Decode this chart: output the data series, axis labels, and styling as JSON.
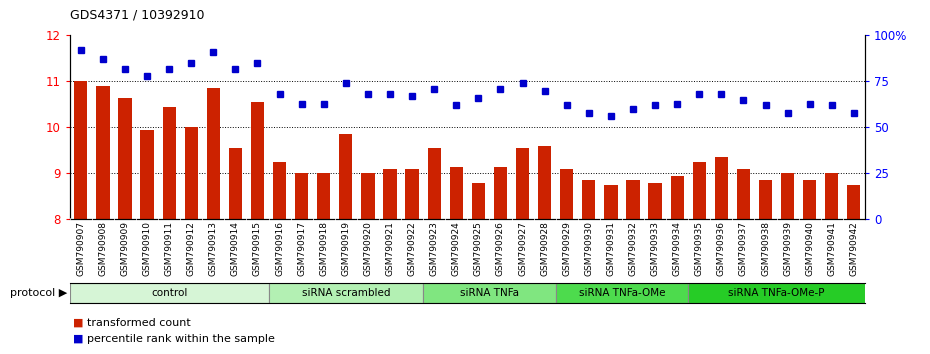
{
  "title": "GDS4371 / 10392910",
  "samples": [
    "GSM790907",
    "GSM790908",
    "GSM790909",
    "GSM790910",
    "GSM790911",
    "GSM790912",
    "GSM790913",
    "GSM790914",
    "GSM790915",
    "GSM790916",
    "GSM790917",
    "GSM790918",
    "GSM790919",
    "GSM790920",
    "GSM790921",
    "GSM790922",
    "GSM790923",
    "GSM790924",
    "GSM790925",
    "GSM790926",
    "GSM790927",
    "GSM790928",
    "GSM790929",
    "GSM790930",
    "GSM790931",
    "GSM790932",
    "GSM790933",
    "GSM790934",
    "GSM790935",
    "GSM790936",
    "GSM790937",
    "GSM790938",
    "GSM790939",
    "GSM790940",
    "GSM790941",
    "GSM790942"
  ],
  "bar_values": [
    11.0,
    10.9,
    10.65,
    9.95,
    10.45,
    10.0,
    10.85,
    9.55,
    10.55,
    9.25,
    9.0,
    9.0,
    9.85,
    9.0,
    9.1,
    9.1,
    9.55,
    9.15,
    8.8,
    9.15,
    9.55,
    9.6,
    9.1,
    8.85,
    8.75,
    8.85,
    8.8,
    8.95,
    9.25,
    9.35,
    9.1,
    8.85,
    9.0,
    8.85,
    9.0,
    8.75
  ],
  "dot_values_pct": [
    92,
    87,
    82,
    78,
    82,
    85,
    91,
    82,
    85,
    68,
    63,
    63,
    74,
    68,
    68,
    67,
    71,
    62,
    66,
    71,
    74,
    70,
    62,
    58,
    56,
    60,
    62,
    63,
    68,
    68,
    65,
    62,
    58,
    63,
    62,
    58
  ],
  "groups": [
    {
      "label": "control",
      "start": 0,
      "end": 9,
      "color": "#d6f5d6"
    },
    {
      "label": "siRNA scrambled",
      "start": 9,
      "end": 16,
      "color": "#b3f0b3"
    },
    {
      "label": "siRNA TNFa",
      "start": 16,
      "end": 22,
      "color": "#80e680"
    },
    {
      "label": "siRNA TNFa-OMe",
      "start": 22,
      "end": 28,
      "color": "#4ddb4d"
    },
    {
      "label": "siRNA TNFa-OMe-P",
      "start": 28,
      "end": 36,
      "color": "#26cc26"
    }
  ],
  "bar_color": "#cc2200",
  "dot_color": "#0000cc",
  "ylim_left": [
    8.0,
    12.0
  ],
  "ylim_right": [
    0,
    100
  ],
  "yticks_left": [
    8,
    9,
    10,
    11,
    12
  ],
  "yticks_right": [
    0,
    25,
    50,
    75,
    100
  ],
  "ytick_labels_right": [
    "0",
    "25",
    "50",
    "75",
    "100%"
  ],
  "hlines": [
    9.0,
    10.0,
    11.0
  ],
  "legend_items": [
    {
      "label": "transformed count",
      "color": "#cc2200"
    },
    {
      "label": "percentile rank within the sample",
      "color": "#0000cc"
    }
  ]
}
